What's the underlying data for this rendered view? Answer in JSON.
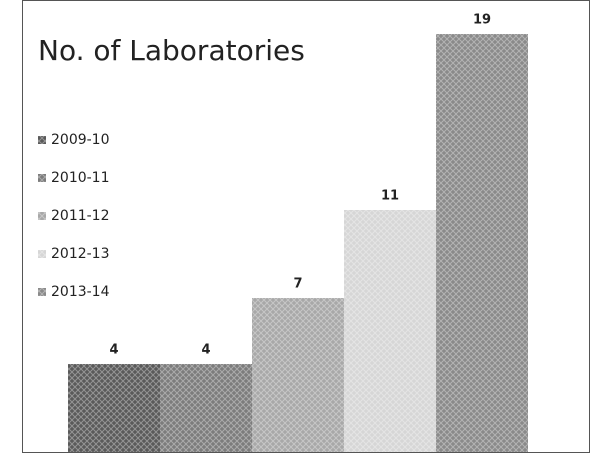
{
  "chart_data": {
    "type": "bar",
    "title": "No. of Laboratories",
    "categories": [
      "2009-10",
      "2010-11",
      "2011-12",
      "2012-13",
      "2013-14"
    ],
    "values": [
      4,
      4,
      7,
      11,
      19
    ],
    "colors": [
      "#5a5a5a",
      "#7c7c7c",
      "#a8a8a8",
      "#d6d6d6",
      "#8a8a8a"
    ]
  }
}
